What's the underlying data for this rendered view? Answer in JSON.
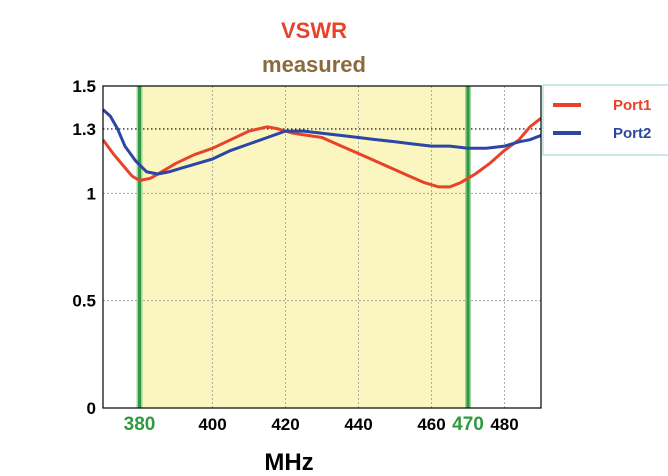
{
  "chart_data": {
    "type": "line",
    "title": "VSWR",
    "subtitle": "measured",
    "xlabel": "MHz",
    "ylabel": "",
    "xlim": [
      370,
      490
    ],
    "ylim": [
      0,
      1.5
    ],
    "x_ticks": [
      400,
      420,
      440,
      460,
      480
    ],
    "y_ticks": [
      0,
      0.5,
      1,
      1.3,
      1.5
    ],
    "band": {
      "start": 380,
      "end": 470,
      "color": "#fbf6bf",
      "edge_color": "#2f9a3e",
      "start_label": "380",
      "end_label": "470"
    },
    "reference_line": {
      "y": 1.3,
      "style": "dotted"
    },
    "grid": true,
    "legend": {
      "position": "top-right"
    },
    "colors": {
      "title": "#e8432a",
      "subtitle": "#8b6a3e",
      "band_edge": "#2f9a3e"
    },
    "series": [
      {
        "name": "Port1",
        "color": "#e8432a",
        "points": [
          [
            370,
            1.25
          ],
          [
            373,
            1.18
          ],
          [
            376,
            1.12
          ],
          [
            378,
            1.08
          ],
          [
            380,
            1.06
          ],
          [
            383,
            1.07
          ],
          [
            386,
            1.1
          ],
          [
            390,
            1.14
          ],
          [
            395,
            1.18
          ],
          [
            400,
            1.21
          ],
          [
            405,
            1.25
          ],
          [
            410,
            1.29
          ],
          [
            415,
            1.31
          ],
          [
            418,
            1.3
          ],
          [
            422,
            1.28
          ],
          [
            426,
            1.27
          ],
          [
            430,
            1.26
          ],
          [
            434,
            1.23
          ],
          [
            438,
            1.2
          ],
          [
            442,
            1.17
          ],
          [
            446,
            1.14
          ],
          [
            450,
            1.11
          ],
          [
            454,
            1.08
          ],
          [
            458,
            1.05
          ],
          [
            462,
            1.03
          ],
          [
            465,
            1.03
          ],
          [
            468,
            1.05
          ],
          [
            472,
            1.09
          ],
          [
            476,
            1.14
          ],
          [
            480,
            1.2
          ],
          [
            484,
            1.25
          ],
          [
            487,
            1.31
          ],
          [
            490,
            1.35
          ]
        ]
      },
      {
        "name": "Port2",
        "color": "#2b46a3",
        "points": [
          [
            370,
            1.39
          ],
          [
            372,
            1.36
          ],
          [
            374,
            1.3
          ],
          [
            376,
            1.22
          ],
          [
            379,
            1.15
          ],
          [
            382,
            1.1
          ],
          [
            385,
            1.09
          ],
          [
            388,
            1.1
          ],
          [
            392,
            1.12
          ],
          [
            396,
            1.14
          ],
          [
            400,
            1.16
          ],
          [
            405,
            1.2
          ],
          [
            410,
            1.23
          ],
          [
            415,
            1.26
          ],
          [
            420,
            1.29
          ],
          [
            425,
            1.29
          ],
          [
            430,
            1.28
          ],
          [
            435,
            1.27
          ],
          [
            440,
            1.26
          ],
          [
            445,
            1.25
          ],
          [
            450,
            1.24
          ],
          [
            455,
            1.23
          ],
          [
            460,
            1.22
          ],
          [
            465,
            1.22
          ],
          [
            470,
            1.21
          ],
          [
            475,
            1.21
          ],
          [
            480,
            1.22
          ],
          [
            484,
            1.24
          ],
          [
            487,
            1.25
          ],
          [
            490,
            1.27
          ]
        ]
      }
    ]
  }
}
